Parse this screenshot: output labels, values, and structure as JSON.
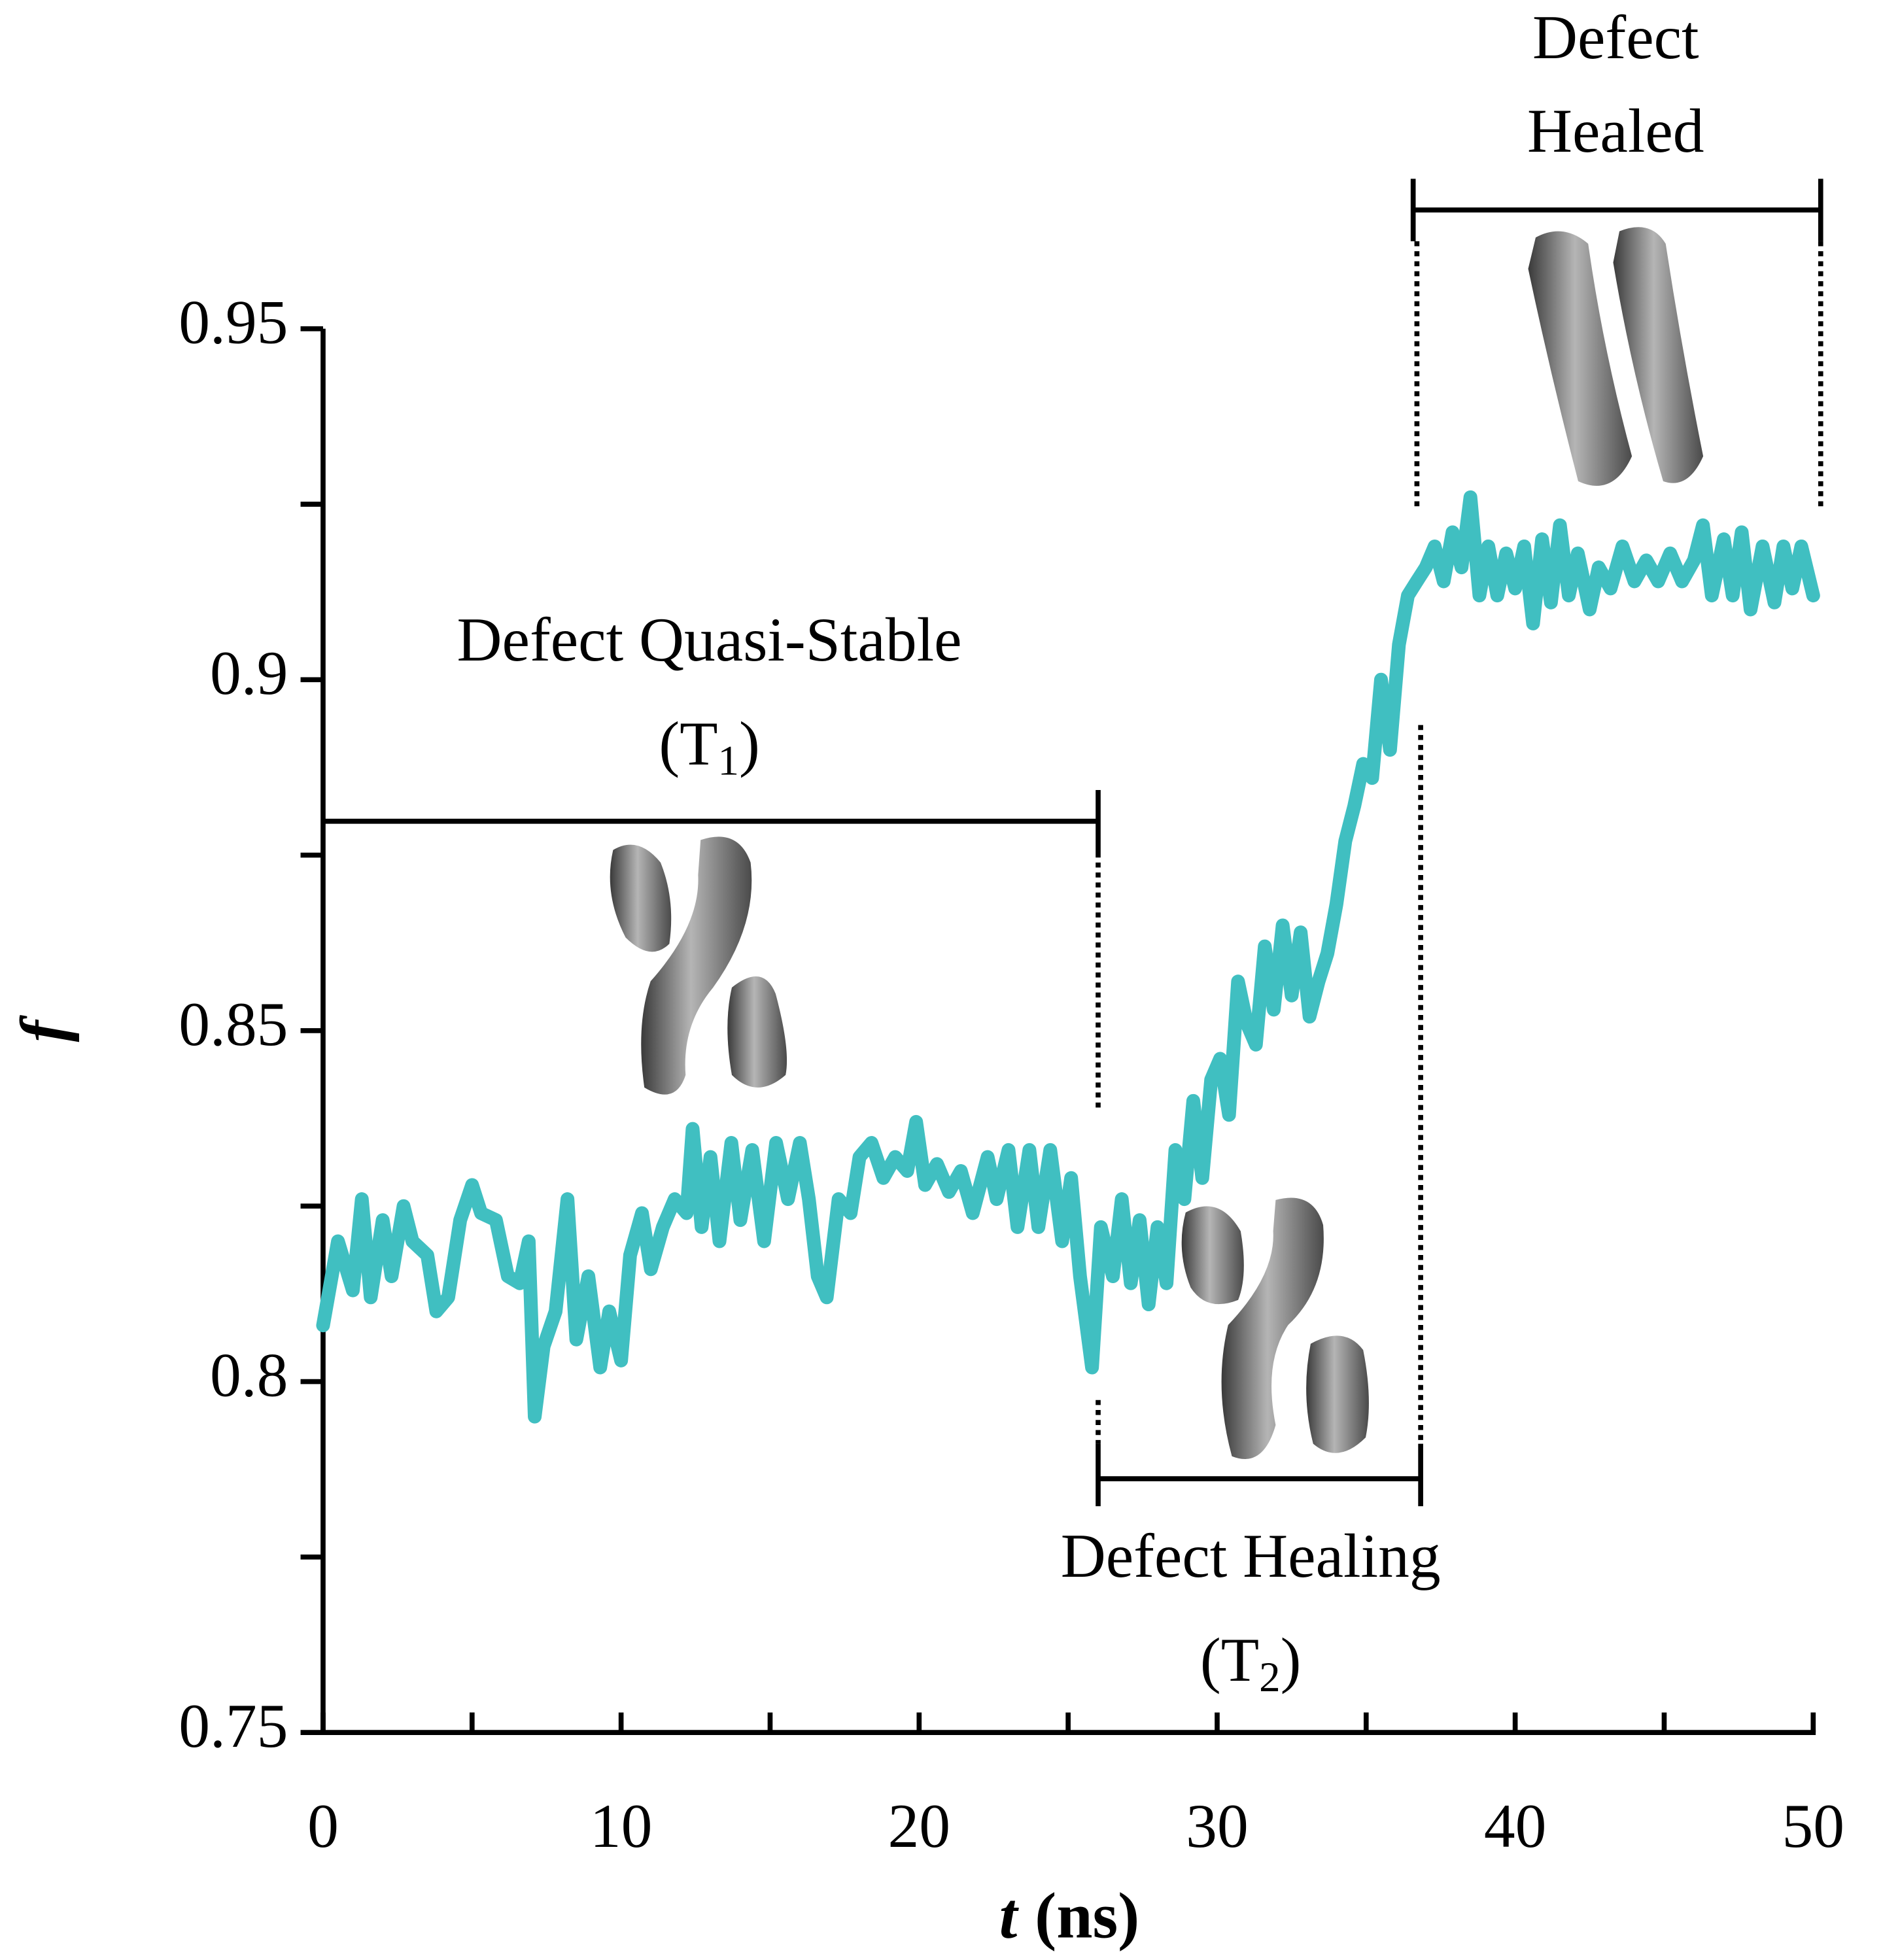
{
  "chart_data": {
    "type": "line",
    "xlabel_var": "t",
    "xlabel_unit": "(ns)",
    "ylabel": "f",
    "xlim": [
      0,
      50
    ],
    "ylim": [
      0.75,
      0.95
    ],
    "xticks": [
      0,
      10,
      20,
      30,
      40,
      50
    ],
    "xminorticks": [
      5,
      15,
      25,
      35,
      45
    ],
    "yticks": [
      0.75,
      0.8,
      0.85,
      0.9,
      0.95
    ],
    "yminorticks": [
      0.775,
      0.825,
      0.875,
      0.925
    ],
    "grid": false,
    "x": [
      0,
      0.5,
      1,
      1.3,
      1.6,
      2,
      2.3,
      2.7,
      3,
      3.5,
      3.8,
      4.2,
      4.6,
      5,
      5.3,
      5.8,
      6.2,
      6.6,
      6.9,
      7.1,
      7.4,
      7.8,
      8.2,
      8.5,
      8.9,
      9.3,
      9.6,
      10,
      10.3,
      10.7,
      11,
      11.4,
      11.8,
      12.2,
      12.4,
      12.7,
      13,
      13.3,
      13.7,
      14,
      14.4,
      14.8,
      15.2,
      15.6,
      16,
      16.3,
      16.6,
      16.9,
      17.3,
      17.7,
      18,
      18.4,
      18.8,
      19.2,
      19.6,
      19.9,
      20.2,
      20.6,
      21,
      21.4,
      21.8,
      22.3,
      22.6,
      23,
      23.3,
      23.7,
      24,
      24.4,
      24.8,
      25.1,
      25.4,
      25.8,
      26.1,
      26.5,
      26.8,
      27.1,
      27.4,
      27.7,
      28,
      28.3,
      28.6,
      28.9,
      29.2,
      29.5,
      29.8,
      30.1,
      30.4,
      30.7,
      31,
      31.3,
      31.6,
      31.9,
      32.2,
      32.5,
      32.8,
      33.1,
      33.4,
      33.7,
      34,
      34.3,
      34.6,
      34.9,
      35.2,
      35.5,
      35.8,
      36.1,
      36.4,
      36.7,
      37,
      37.3,
      37.6,
      37.9,
      38.2,
      38.5,
      38.8,
      39.1,
      39.4,
      39.7,
      40,
      40.3,
      40.6,
      40.9,
      41.2,
      41.5,
      41.8,
      42.1,
      42.5,
      42.8,
      43.2,
      43.6,
      44,
      44.4,
      44.8,
      45.2,
      45.6,
      46,
      46.3,
      46.6,
      47,
      47.3,
      47.6,
      47.9,
      48.3,
      48.7,
      49,
      49.3,
      49.6,
      50
    ],
    "series": [
      {
        "name": "f",
        "color": "#40bfc1",
        "values": [
          0.808,
          0.82,
          0.813,
          0.826,
          0.812,
          0.823,
          0.815,
          0.825,
          0.82,
          0.818,
          0.81,
          0.812,
          0.823,
          0.828,
          0.824,
          0.823,
          0.815,
          0.814,
          0.82,
          0.795,
          0.805,
          0.81,
          0.826,
          0.806,
          0.815,
          0.802,
          0.81,
          0.803,
          0.818,
          0.824,
          0.816,
          0.822,
          0.826,
          0.824,
          0.836,
          0.822,
          0.832,
          0.82,
          0.834,
          0.823,
          0.833,
          0.82,
          0.834,
          0.826,
          0.834,
          0.826,
          0.815,
          0.812,
          0.826,
          0.824,
          0.832,
          0.834,
          0.829,
          0.832,
          0.83,
          0.837,
          0.828,
          0.831,
          0.827,
          0.83,
          0.824,
          0.832,
          0.826,
          0.833,
          0.822,
          0.833,
          0.822,
          0.833,
          0.82,
          0.829,
          0.815,
          0.802,
          0.822,
          0.815,
          0.826,
          0.814,
          0.823,
          0.811,
          0.822,
          0.814,
          0.833,
          0.826,
          0.84,
          0.829,
          0.843,
          0.846,
          0.838,
          0.857,
          0.851,
          0.848,
          0.862,
          0.853,
          0.865,
          0.855,
          0.864,
          0.852,
          0.857,
          0.861,
          0.868,
          0.877,
          0.882,
          0.888,
          0.886,
          0.9,
          0.89,
          0.905,
          0.912,
          0.914,
          0.916,
          0.919,
          0.914,
          0.921,
          0.916,
          0.926,
          0.912,
          0.919,
          0.912,
          0.918,
          0.913,
          0.919,
          0.908,
          0.92,
          0.911,
          0.922,
          0.912,
          0.918,
          0.91,
          0.916,
          0.913,
          0.919,
          0.914,
          0.917,
          0.914,
          0.918,
          0.914,
          0.917,
          0.922,
          0.912,
          0.92,
          0.912,
          0.921,
          0.91,
          0.919,
          0.911,
          0.919,
          0.913,
          0.919,
          0.912
        ]
      }
    ],
    "annotations": [
      {
        "line1": "Defect Quasi-Stable",
        "line2": [
          "(T",
          "1",
          ")"
        ]
      },
      {
        "line1": "Defect Healing",
        "line2": [
          "(T",
          "2",
          ")"
        ]
      },
      {
        "line1": "Defect",
        "line2_text": "Healed"
      }
    ]
  }
}
